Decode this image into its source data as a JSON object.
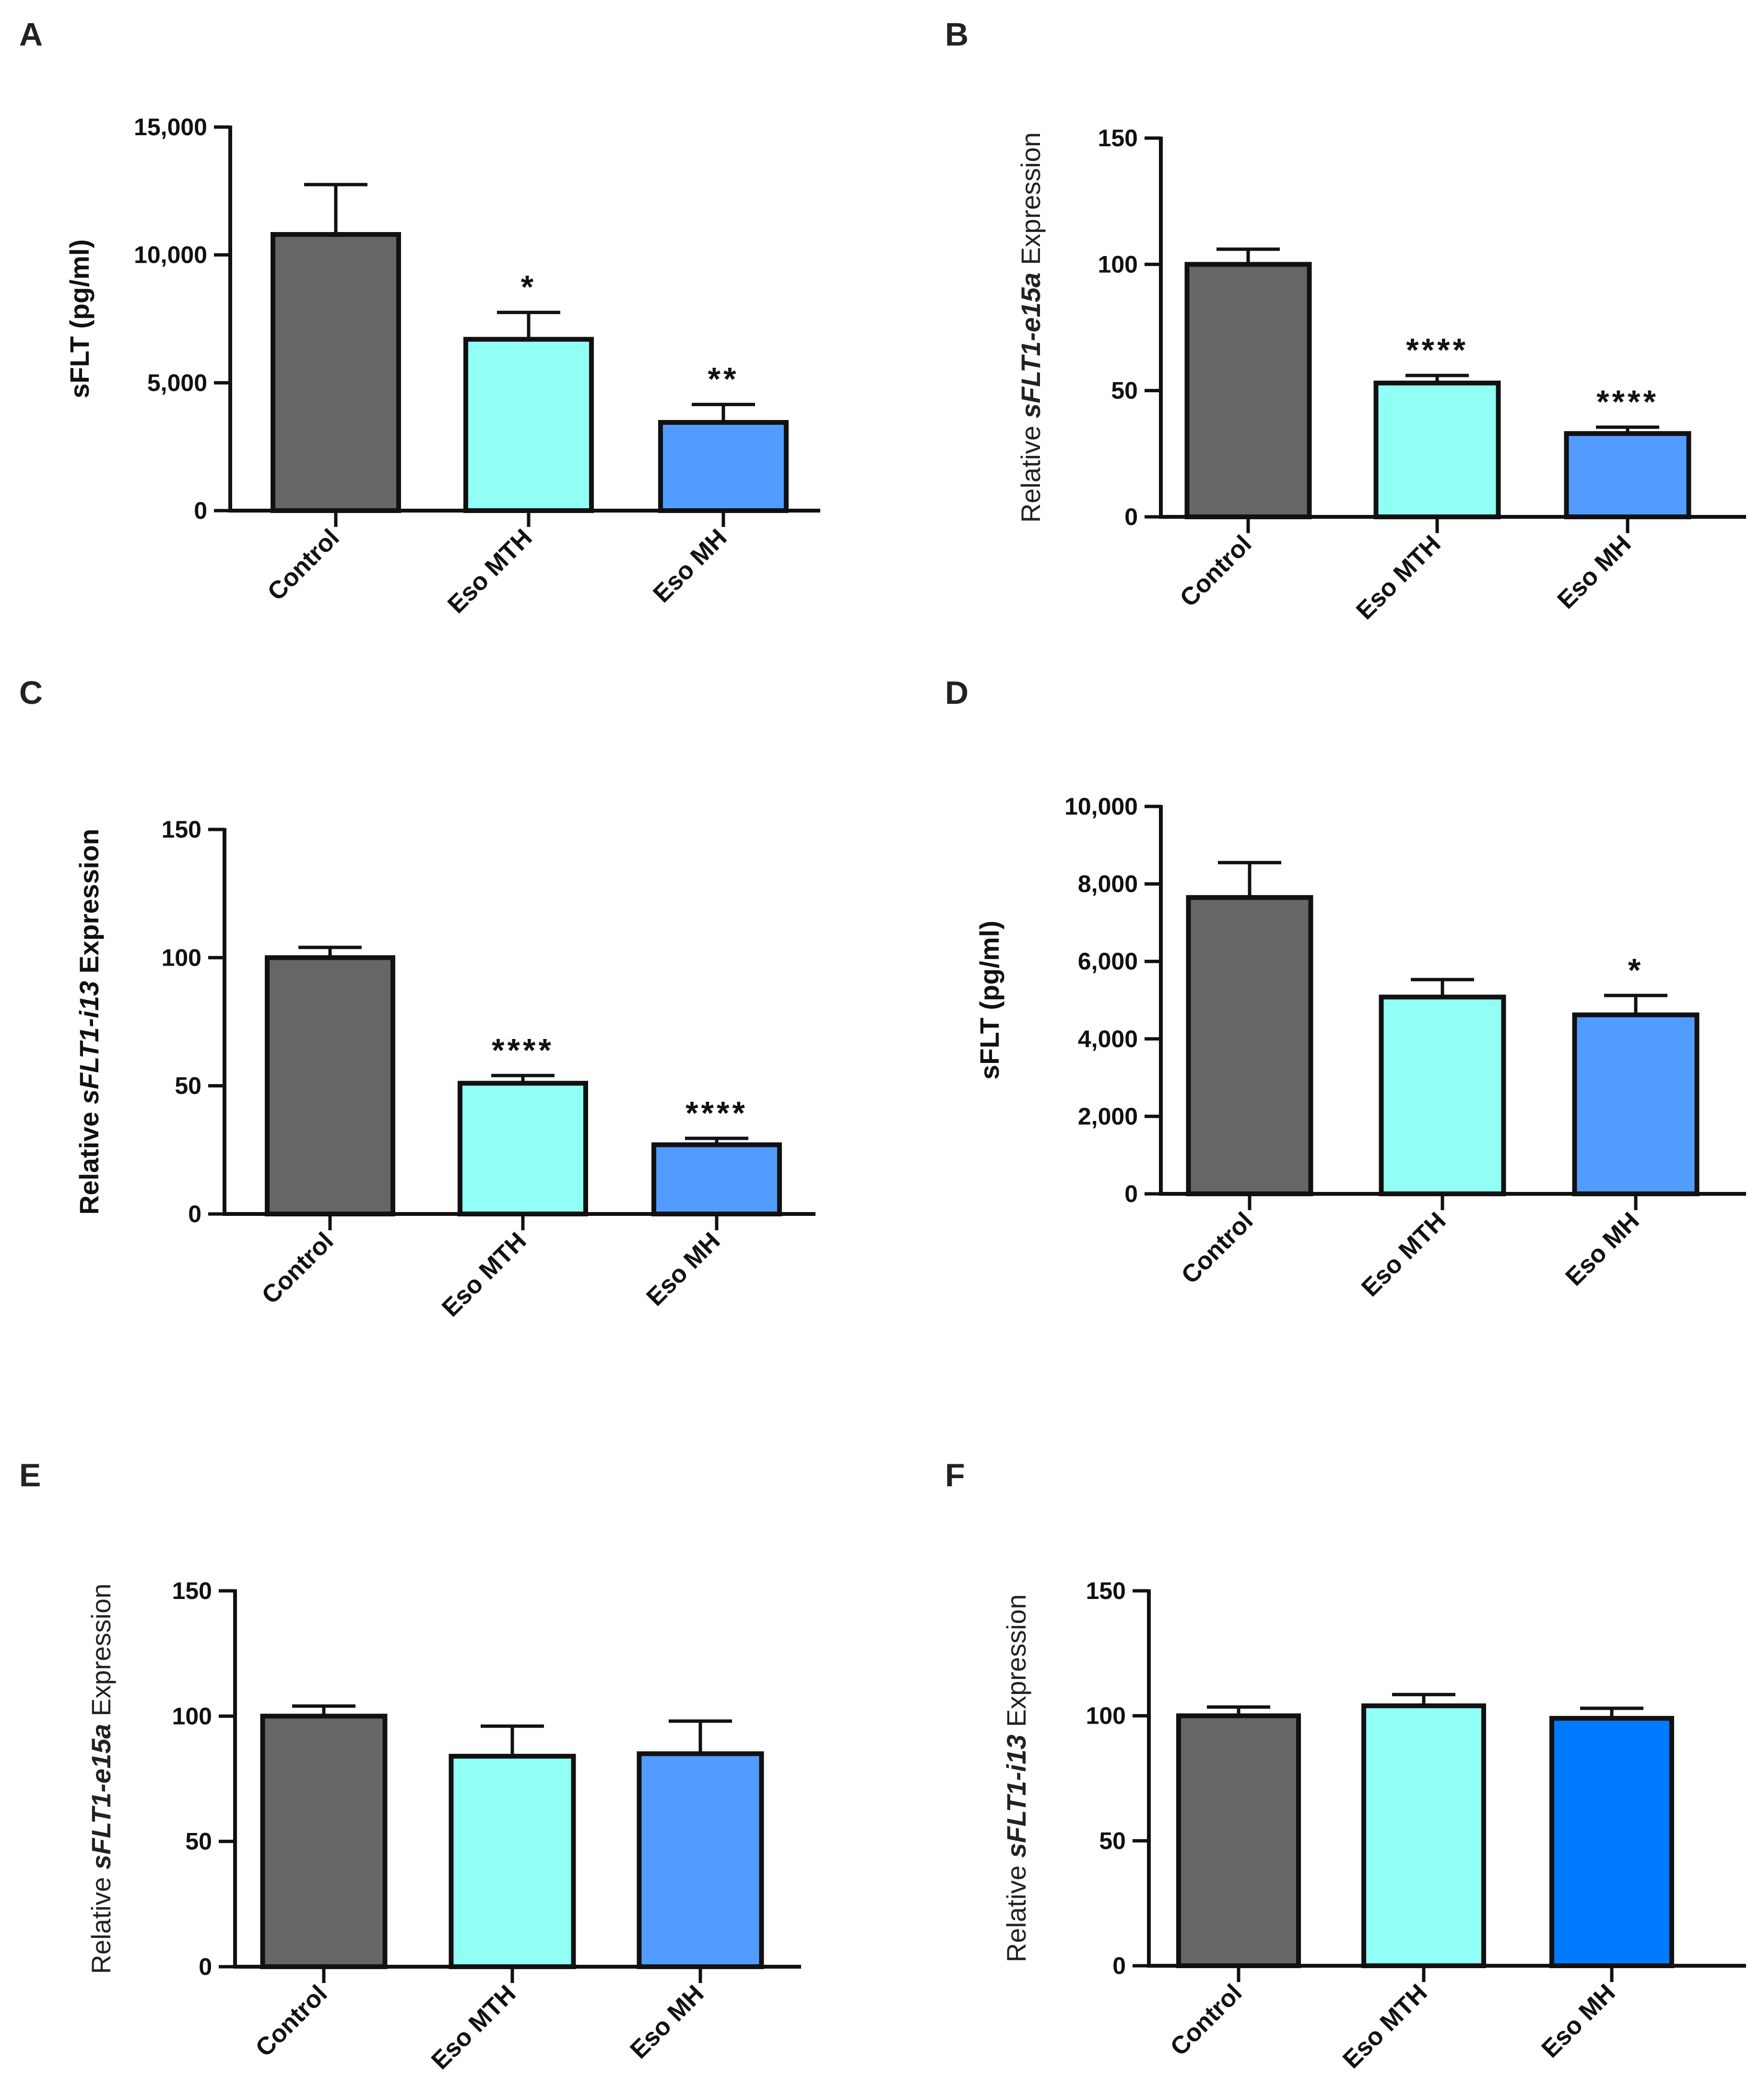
{
  "chart_data": [
    {
      "panel": "A",
      "type": "bar",
      "ylabel": [
        "sFLT (pg/ml)"
      ],
      "ylabel_style": "bold",
      "categories": [
        "Control",
        "Eso MTH",
        "Eso MH"
      ],
      "values": [
        10800,
        6700,
        3450
      ],
      "errors": [
        1950,
        1050,
        700
      ],
      "significance": [
        "",
        "*",
        "**"
      ],
      "ylim": [
        0,
        15000
      ],
      "yticks": [
        0,
        5000,
        10000,
        15000
      ],
      "ytick_labels": [
        "0",
        "5,000",
        "10,000",
        "15,000"
      ],
      "colors": [
        "#666666",
        "#91fff4",
        "#529cff"
      ]
    },
    {
      "panel": "B",
      "type": "bar",
      "ylabel": [
        "Relative ",
        "sFLT1-e15a",
        " Expression"
      ],
      "ylabel_style": "plain",
      "categories": [
        "Control",
        "Eso MTH",
        "Eso MH"
      ],
      "values": [
        100,
        53,
        33
      ],
      "errors": [
        6,
        3,
        2.5
      ],
      "significance": [
        "",
        "****",
        "****"
      ],
      "ylim": [
        0,
        150
      ],
      "yticks": [
        0,
        50,
        100,
        150
      ],
      "ytick_labels": [
        "0",
        "50",
        "100",
        "150"
      ],
      "colors": [
        "#666666",
        "#91fff4",
        "#529cff"
      ]
    },
    {
      "panel": "C",
      "type": "bar",
      "ylabel": [
        "Relative ",
        "sFLT1-i13",
        " Expression"
      ],
      "ylabel_style": "bold",
      "categories": [
        "Control",
        "Eso MTH",
        "Eso MH"
      ],
      "values": [
        100,
        51,
        27
      ],
      "errors": [
        4,
        3,
        2.5
      ],
      "significance": [
        "",
        "****",
        "****"
      ],
      "ylim": [
        0,
        150
      ],
      "yticks": [
        0,
        50,
        100,
        150
      ],
      "ytick_labels": [
        "0",
        "50",
        "100",
        "150"
      ],
      "colors": [
        "#666666",
        "#91fff4",
        "#529cff"
      ]
    },
    {
      "panel": "D",
      "type": "bar",
      "ylabel": [
        "sFLT (pg/ml)"
      ],
      "ylabel_style": "bold",
      "categories": [
        "Control",
        "Eso MTH",
        "Eso MH"
      ],
      "values": [
        7650,
        5080,
        4620
      ],
      "errors": [
        900,
        450,
        500
      ],
      "significance": [
        "",
        "",
        "*"
      ],
      "ylim": [
        0,
        10000
      ],
      "yticks": [
        0,
        2000,
        4000,
        6000,
        8000,
        10000
      ],
      "ytick_labels": [
        "0",
        "2,000",
        "4,000",
        "6,000",
        "8,000",
        "10,000"
      ],
      "colors": [
        "#666666",
        "#91fff4",
        "#529cff"
      ]
    },
    {
      "panel": "E",
      "type": "bar",
      "ylabel": [
        "Relative ",
        "sFLT1-e15a",
        " Expression"
      ],
      "ylabel_style": "plain",
      "categories": [
        "Control",
        "Eso MTH",
        "Eso MH"
      ],
      "values": [
        100,
        84,
        85
      ],
      "errors": [
        4,
        12,
        13
      ],
      "significance": [
        "",
        "",
        ""
      ],
      "ylim": [
        0,
        150
      ],
      "yticks": [
        0,
        50,
        100,
        150
      ],
      "ytick_labels": [
        "0",
        "50",
        "100",
        "150"
      ],
      "colors": [
        "#666666",
        "#91fff4",
        "#529cff"
      ]
    },
    {
      "panel": "F",
      "type": "bar",
      "ylabel": [
        "Relative ",
        "sFLT1-i13",
        " Expression"
      ],
      "ylabel_style": "plain",
      "categories": [
        "Control",
        "Eso MTH",
        "Eso MH"
      ],
      "values": [
        100,
        104,
        99
      ],
      "errors": [
        3.5,
        4.5,
        4
      ],
      "significance": [
        "",
        "",
        ""
      ],
      "ylim": [
        0,
        150
      ],
      "yticks": [
        0,
        50,
        100,
        150
      ],
      "ytick_labels": [
        "0",
        "50",
        "100",
        "150"
      ],
      "colors": [
        "#666666",
        "#91fff4",
        "#007bff"
      ]
    }
  ]
}
